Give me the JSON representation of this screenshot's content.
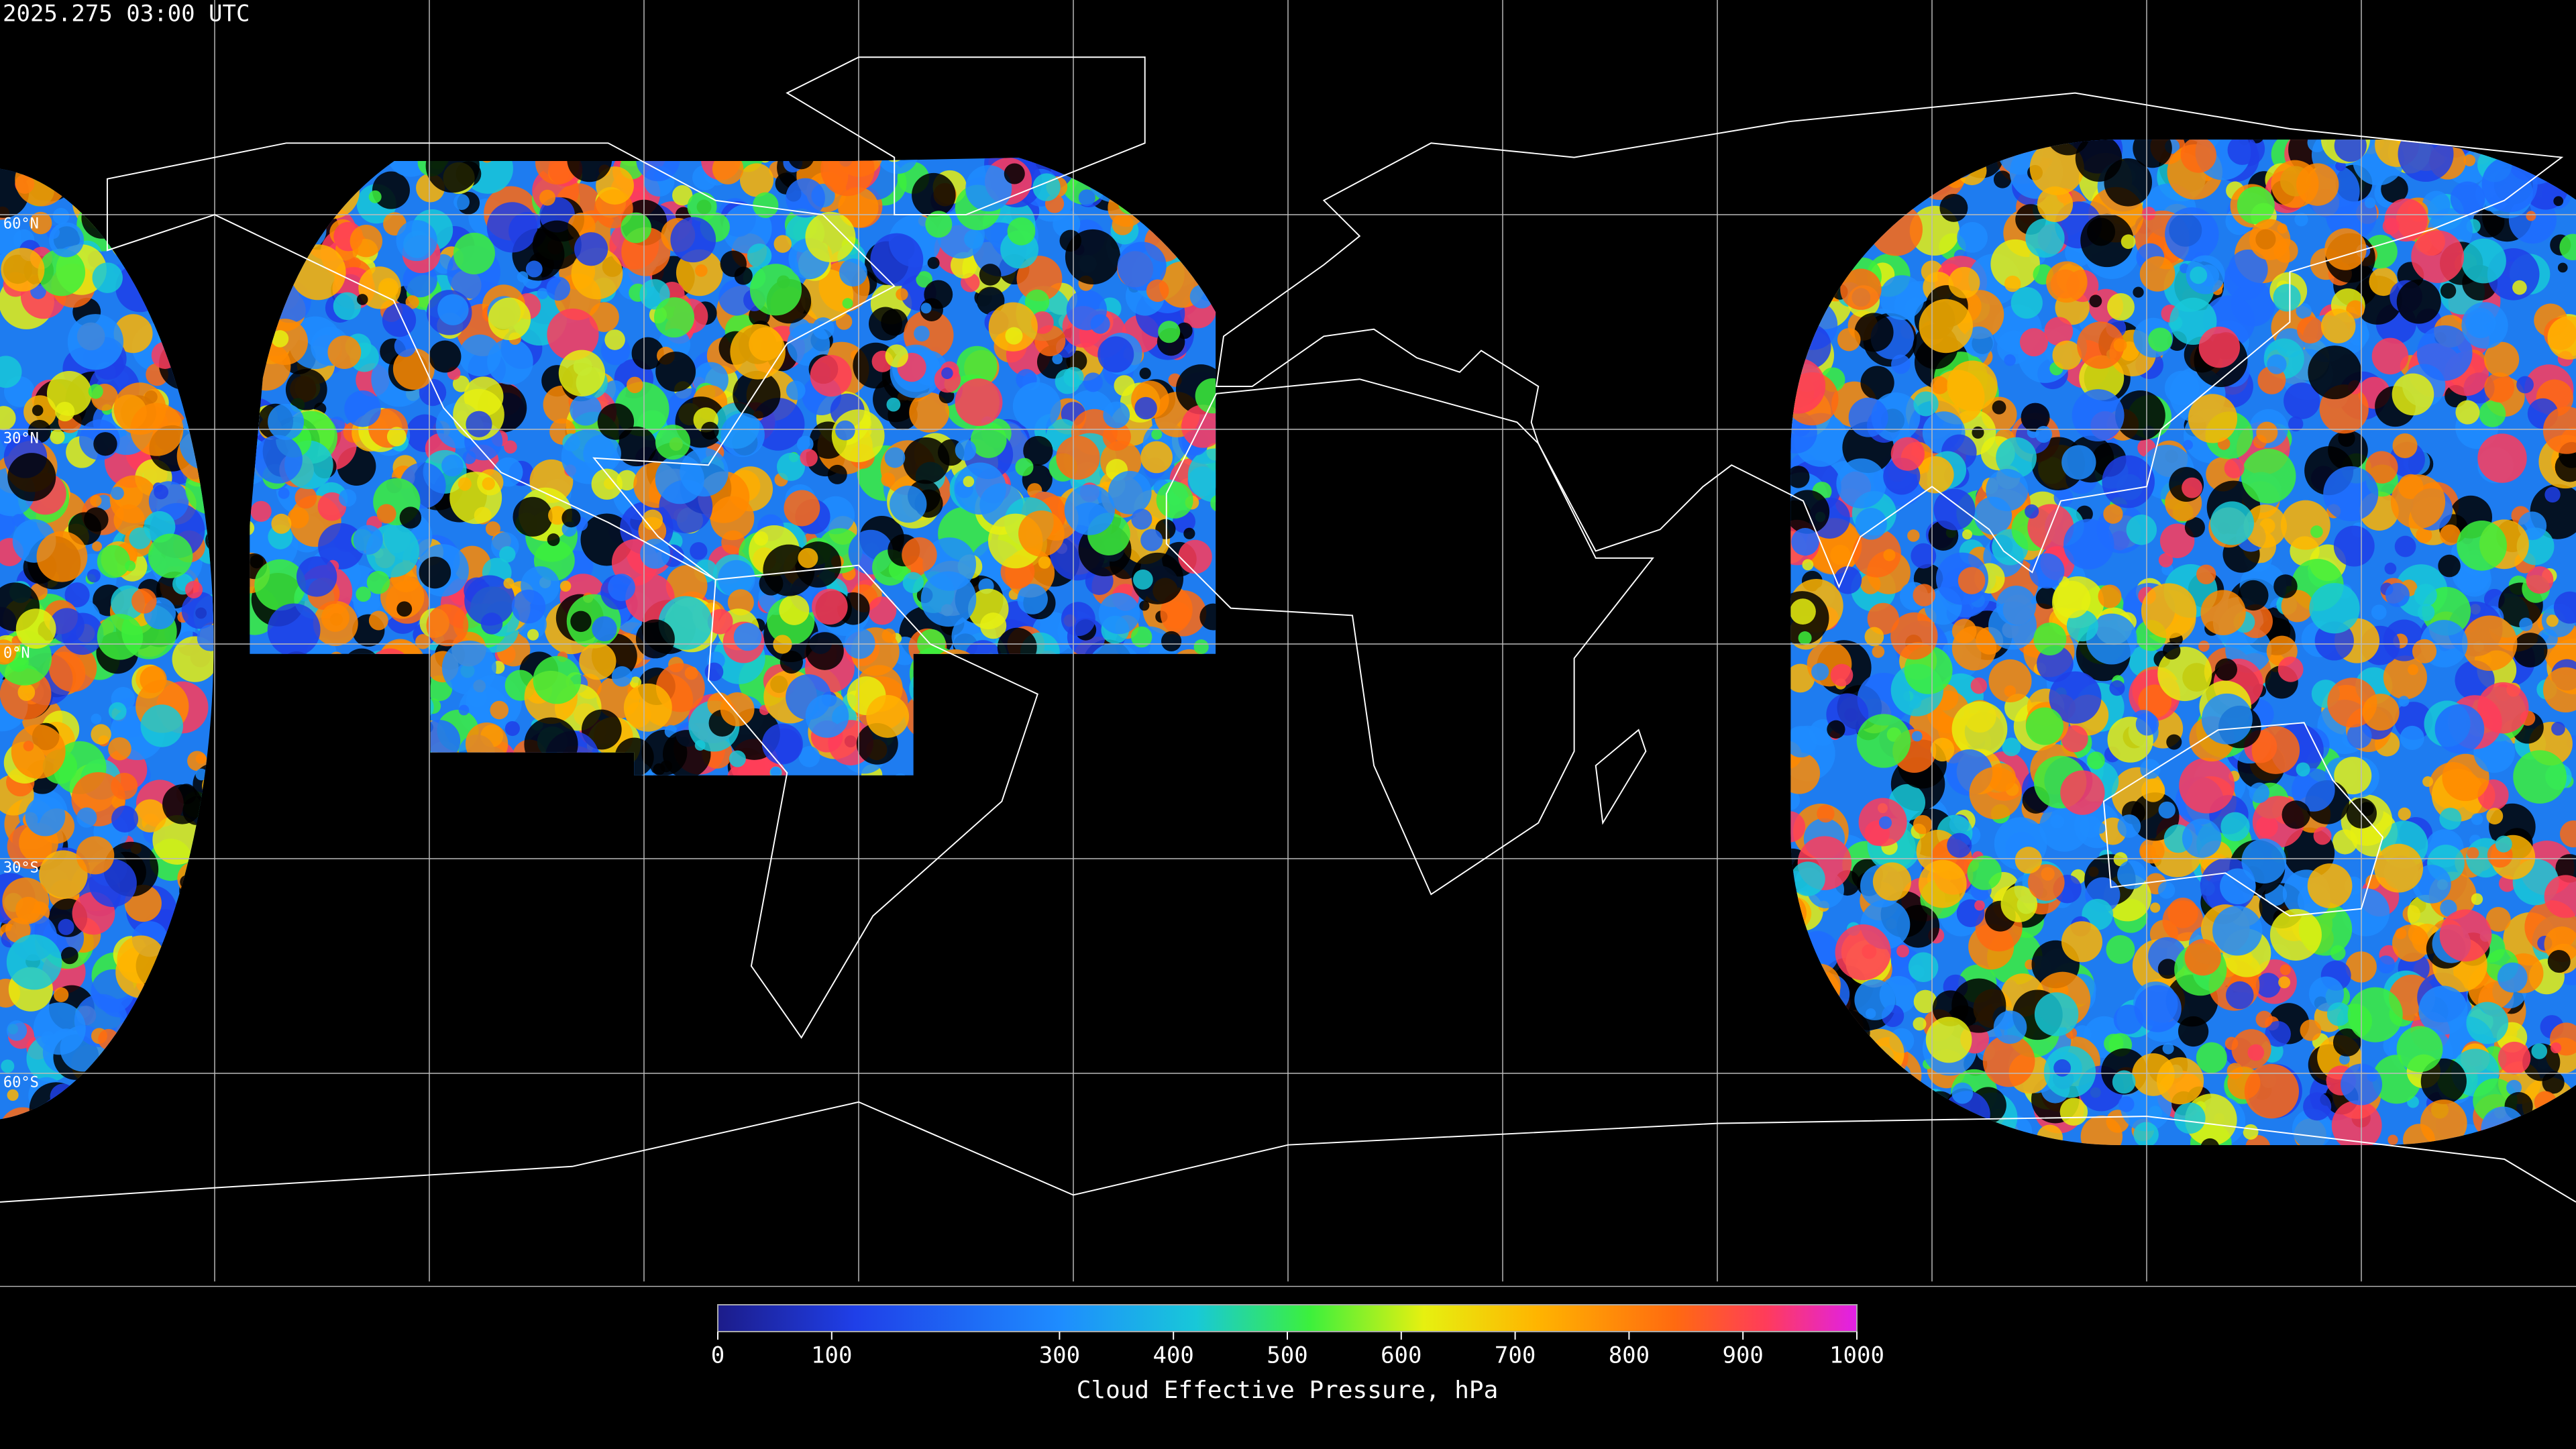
{
  "timestamp": "2025.275 03:00 UTC",
  "map": {
    "latitude_lines": [
      {
        "value": 60,
        "label": "60°N"
      },
      {
        "value": 30,
        "label": "30°N"
      },
      {
        "value": 0,
        "label": "0°N"
      },
      {
        "value": -30,
        "label": "30°S"
      },
      {
        "value": -60,
        "label": "60°S"
      }
    ],
    "longitude_lines": [
      -150,
      -120,
      -90,
      -60,
      -30,
      0,
      30,
      60,
      90,
      120,
      150
    ]
  },
  "colorbar": {
    "label": "Cloud Effective Pressure, hPa",
    "range": [
      0,
      1000
    ],
    "ticks": [
      0,
      100,
      300,
      400,
      500,
      600,
      700,
      800,
      900,
      1000
    ]
  }
}
